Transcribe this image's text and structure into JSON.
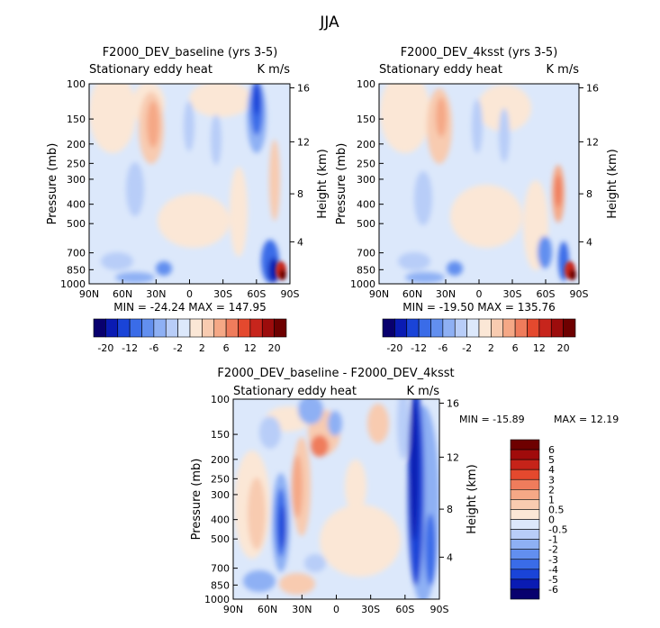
{
  "figure": {
    "title": "JJA"
  },
  "chart_data": [
    {
      "type": "heatmap",
      "title": "F2000_DEV_baseline (yrs 3-5)",
      "subtitle_left": "Stationary eddy heat",
      "subtitle_right": "K m/s",
      "ylabel": "Pressure (mb)",
      "ylabel_right": "Height (km)",
      "xticks": [
        "90N",
        "60N",
        "30N",
        "0",
        "30S",
        "60S",
        "90S"
      ],
      "yticks": [
        "100",
        "150",
        "200",
        "250",
        "300",
        "400",
        "500",
        "700",
        "850",
        "1000"
      ],
      "yticks_right": [
        "16",
        "12",
        "8",
        "4"
      ],
      "stats": "MIN = -24.24   MAX = 147.95",
      "xlim": [
        90,
        -90
      ],
      "ylim": [
        1000,
        100
      ],
      "yscale": "log"
    },
    {
      "type": "heatmap",
      "title": "F2000_DEV_4ksst (yrs 3-5)",
      "subtitle_left": "Stationary eddy heat",
      "subtitle_right": "K m/s",
      "ylabel": "Pressure (mb)",
      "ylabel_right": "Height (km)",
      "xticks": [
        "90N",
        "60N",
        "30N",
        "0",
        "30S",
        "60S",
        "90S"
      ],
      "yticks": [
        "100",
        "150",
        "200",
        "250",
        "300",
        "400",
        "500",
        "700",
        "850",
        "1000"
      ],
      "yticks_right": [
        "16",
        "12",
        "8",
        "4"
      ],
      "stats": "MIN = -19.50   MAX = 135.76",
      "xlim": [
        90,
        -90
      ],
      "ylim": [
        1000,
        100
      ],
      "yscale": "log"
    },
    {
      "type": "heatmap",
      "title": "F2000_DEV_baseline - F2000_DEV_4ksst",
      "subtitle_left": "Stationary eddy heat",
      "subtitle_right": "K m/s",
      "ylabel": "Pressure (mb)",
      "ylabel_right": "Height (km)",
      "xticks": [
        "90N",
        "60N",
        "30N",
        "0",
        "30S",
        "60S",
        "90S"
      ],
      "yticks": [
        "100",
        "150",
        "200",
        "250",
        "300",
        "400",
        "500",
        "700",
        "850",
        "1000"
      ],
      "yticks_right": [
        "16",
        "12",
        "8",
        "4"
      ],
      "stats_min": "MIN = -15.89",
      "stats_max": "MAX =  12.19",
      "xlim": [
        90,
        -90
      ],
      "ylim": [
        1000,
        100
      ],
      "yscale": "log"
    }
  ],
  "colorbar_main": {
    "labels": [
      "-20",
      "-12",
      "-6",
      "-2",
      "2",
      "6",
      "12",
      "20"
    ],
    "colors": [
      "#08006e",
      "#0a1bb3",
      "#1a44d8",
      "#3a6ce8",
      "#628fef",
      "#8eb0f4",
      "#b8cdf8",
      "#dce8fb",
      "#fbe7d6",
      "#f8cbb0",
      "#f5a886",
      "#ef7c5c",
      "#e4492e",
      "#c7251c",
      "#9c0c0c",
      "#6e0000"
    ]
  },
  "colorbar_diff": {
    "labels": [
      "6",
      "5",
      "4",
      "3",
      "2",
      "1",
      "0.5",
      "0",
      "-0.5",
      "-1",
      "-2",
      "-3",
      "-4",
      "-5",
      "-6"
    ],
    "colors": [
      "#6e0000",
      "#a00b0b",
      "#c62319",
      "#e4492e",
      "#ef7c5c",
      "#f5a886",
      "#f8cbb0",
      "#fbe7d6",
      "#dce8fb",
      "#b8cdf8",
      "#8eb0f4",
      "#628fef",
      "#3a6ce8",
      "#1a44d8",
      "#0a1bb3",
      "#08006e"
    ]
  }
}
